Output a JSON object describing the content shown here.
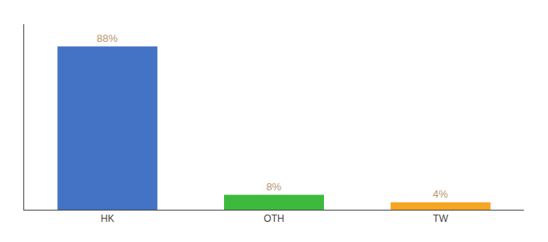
{
  "chart_data": {
    "type": "bar",
    "categories": [
      "HK",
      "OTH",
      "TW"
    ],
    "values": [
      88,
      8,
      4
    ],
    "value_labels": [
      "88%",
      "8%",
      "4%"
    ],
    "colors": [
      "#4472c4",
      "#3dba3d",
      "#f5a623"
    ],
    "data_labels": true,
    "ylim": [
      0,
      100
    ],
    "tick_labels": "x",
    "grid": false
  }
}
